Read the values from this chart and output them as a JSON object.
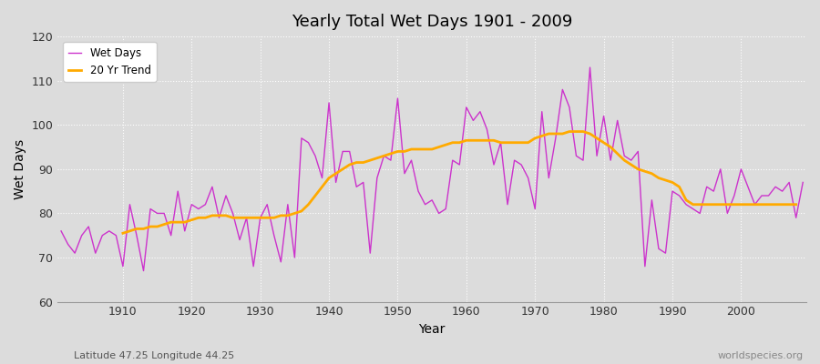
{
  "title": "Yearly Total Wet Days 1901 - 2009",
  "xlabel": "Year",
  "ylabel": "Wet Days",
  "subtitle": "Latitude 47.25 Longitude 44.25",
  "watermark": "worldspecies.org",
  "bg_color": "#dcdcdc",
  "plot_bg_color": "#dcdcdc",
  "grid_color": "#ffffff",
  "line_color": "#cc33cc",
  "trend_color": "#ffaa00",
  "ylim": [
    60,
    120
  ],
  "xlim": [
    1901,
    2009
  ],
  "years": [
    1901,
    1902,
    1903,
    1904,
    1905,
    1906,
    1907,
    1908,
    1909,
    1910,
    1911,
    1912,
    1913,
    1914,
    1915,
    1916,
    1917,
    1918,
    1919,
    1920,
    1921,
    1922,
    1923,
    1924,
    1925,
    1926,
    1927,
    1928,
    1929,
    1930,
    1931,
    1932,
    1933,
    1934,
    1935,
    1936,
    1937,
    1938,
    1939,
    1940,
    1941,
    1942,
    1943,
    1944,
    1945,
    1946,
    1947,
    1948,
    1949,
    1950,
    1951,
    1952,
    1953,
    1954,
    1955,
    1956,
    1957,
    1958,
    1959,
    1960,
    1961,
    1962,
    1963,
    1964,
    1965,
    1966,
    1967,
    1968,
    1969,
    1970,
    1971,
    1972,
    1973,
    1974,
    1975,
    1976,
    1977,
    1978,
    1979,
    1980,
    1981,
    1982,
    1983,
    1984,
    1985,
    1986,
    1987,
    1988,
    1989,
    1990,
    1991,
    1992,
    1993,
    1994,
    1995,
    1996,
    1997,
    1998,
    1999,
    2000,
    2001,
    2002,
    2003,
    2004,
    2005,
    2006,
    2007,
    2008,
    2009
  ],
  "wet_days": [
    76,
    73,
    71,
    75,
    77,
    71,
    75,
    76,
    75,
    68,
    82,
    75,
    67,
    81,
    80,
    80,
    75,
    85,
    76,
    82,
    81,
    82,
    86,
    79,
    84,
    80,
    74,
    79,
    68,
    79,
    82,
    75,
    69,
    82,
    70,
    97,
    96,
    93,
    88,
    105,
    87,
    94,
    94,
    86,
    87,
    71,
    88,
    93,
    92,
    106,
    89,
    92,
    85,
    82,
    83,
    80,
    81,
    92,
    91,
    104,
    101,
    103,
    99,
    91,
    96,
    82,
    92,
    91,
    88,
    81,
    103,
    88,
    97,
    108,
    104,
    93,
    92,
    113,
    93,
    102,
    92,
    101,
    93,
    92,
    94,
    68,
    83,
    72,
    71,
    85,
    84,
    82,
    81,
    80,
    86,
    85,
    90,
    80,
    84,
    90,
    86,
    82,
    84,
    84,
    86,
    85,
    87,
    79,
    87
  ],
  "trend": [
    null,
    null,
    null,
    null,
    null,
    null,
    null,
    null,
    null,
    75.5,
    76,
    76.5,
    76.5,
    77,
    77,
    77.5,
    78,
    78,
    78,
    78.5,
    79,
    79,
    79.5,
    79.5,
    79.5,
    79,
    79,
    79,
    79,
    79,
    79,
    79,
    79.5,
    79.5,
    80,
    80.5,
    82,
    84,
    86,
    88,
    89,
    90,
    91,
    91.5,
    91.5,
    92,
    92.5,
    93,
    93.5,
    94,
    94,
    94.5,
    94.5,
    94.5,
    94.5,
    95,
    95.5,
    96,
    96,
    96.5,
    96.5,
    96.5,
    96.5,
    96.5,
    96,
    96,
    96,
    96,
    96,
    97,
    97.5,
    98,
    98,
    98,
    98.5,
    98.5,
    98.5,
    98,
    97,
    96,
    95,
    93.5,
    92,
    91,
    90,
    89.5,
    89,
    88,
    87.5,
    87,
    86,
    83,
    82,
    82,
    82,
    82,
    82,
    82,
    82,
    82,
    82,
    82,
    82,
    82,
    82,
    82,
    82,
    82,
    null
  ]
}
